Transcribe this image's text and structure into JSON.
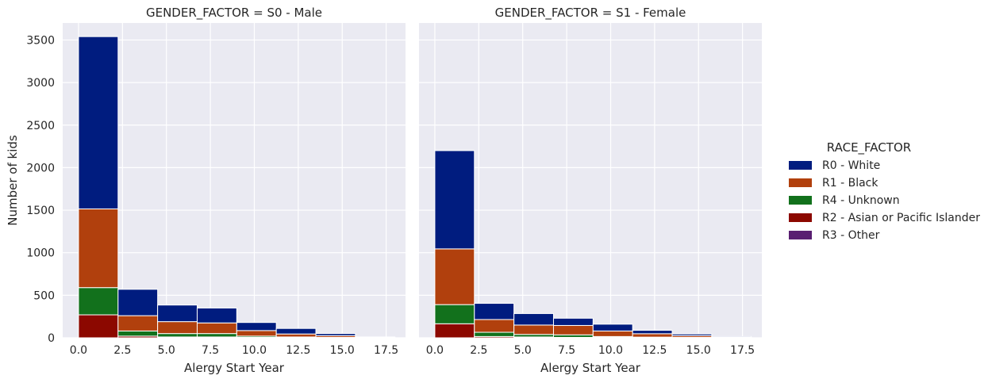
{
  "chart_data": {
    "type": "bar",
    "subtype": "stacked-histogram-facets",
    "legend": {
      "title": "RACE_FACTOR",
      "placement": "right",
      "entries": [
        {
          "name": "R0 - White",
          "color": "#001c7f"
        },
        {
          "name": "R1 - Black",
          "color": "#b1400d"
        },
        {
          "name": "R4 - Unknown",
          "color": "#12711c"
        },
        {
          "name": "R2 - Asian or Pacific Islander",
          "color": "#8c0800"
        },
        {
          "name": "R3 - Other",
          "color": "#591e71"
        }
      ]
    },
    "ylabel": "Number of kids",
    "ylim": [
      0,
      3700
    ],
    "yticks": [
      0,
      500,
      1000,
      1500,
      2000,
      2500,
      3000,
      3500
    ],
    "xlim": [
      -0.9,
      18.6
    ],
    "xticks": [
      0.0,
      2.5,
      5.0,
      7.5,
      10.0,
      12.5,
      15.0,
      17.5
    ],
    "xtick_labels": [
      "0.0",
      "2.5",
      "5.0",
      "7.5",
      "10.0",
      "12.5",
      "15.0",
      "17.5"
    ],
    "bin_edges": [
      0.0,
      2.25,
      4.5,
      6.75,
      9.0,
      11.25,
      13.5,
      15.75,
      18.0
    ],
    "grid": true,
    "panels": [
      {
        "title": "GENDER_FACTOR = S0 - Male",
        "xlabel": "Alergy Start Year",
        "series": [
          {
            "name": "R2 - Asian or Pacific Islander",
            "values": [
              270,
              20,
              10,
              10,
              5,
              3,
              2,
              0
            ]
          },
          {
            "name": "R4 - Unknown",
            "values": [
              320,
              60,
              40,
              40,
              15,
              7,
              3,
              0
            ]
          },
          {
            "name": "R1 - Black",
            "values": [
              925,
              180,
              140,
              125,
              65,
              35,
              20,
              5
            ]
          },
          {
            "name": "R0 - White",
            "values": [
              2025,
              310,
              195,
              175,
              95,
              65,
              25,
              5
            ]
          },
          {
            "name": "R3 - Other",
            "values": [
              0,
              0,
              0,
              0,
              0,
              0,
              0,
              0
            ]
          }
        ]
      },
      {
        "title": "GENDER_FACTOR = S1 - Female",
        "xlabel": "Alergy Start Year",
        "series": [
          {
            "name": "R2 - Asian or Pacific Islander",
            "values": [
              165,
              15,
              10,
              5,
              5,
              3,
              2,
              0
            ]
          },
          {
            "name": "R4 - Unknown",
            "values": [
              225,
              50,
              30,
              30,
              10,
              5,
              3,
              0
            ]
          },
          {
            "name": "R1 - Black",
            "values": [
              655,
              150,
              110,
              110,
              65,
              40,
              20,
              5
            ]
          },
          {
            "name": "R0 - White",
            "values": [
              1155,
              190,
              135,
              85,
              80,
              40,
              20,
              10
            ]
          },
          {
            "name": "R3 - Other",
            "values": [
              0,
              0,
              0,
              0,
              0,
              0,
              0,
              0
            ]
          }
        ]
      }
    ]
  }
}
